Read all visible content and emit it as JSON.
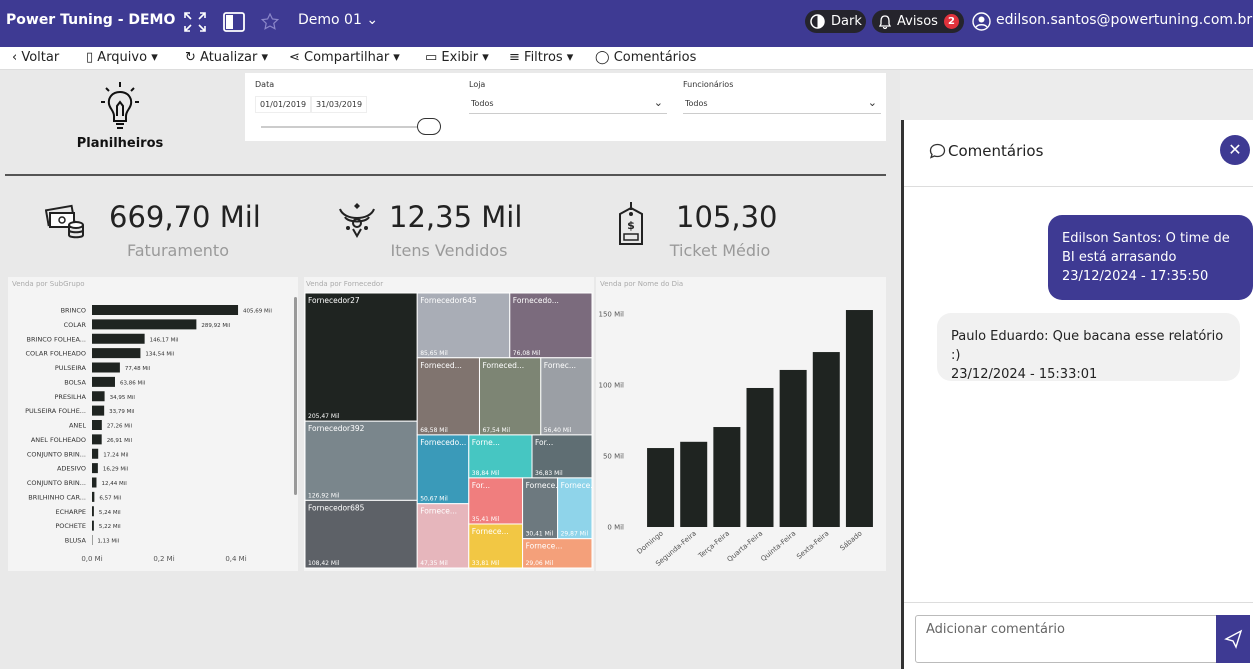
{
  "header": {
    "title": "Power Tuning - DEMO",
    "page": "Demo 01",
    "theme": "Dark",
    "alerts": "Avisos",
    "alert_count": 2,
    "user": "edilson.santos@powertuning.com.br"
  },
  "toolbar": {
    "items": [
      "Voltar",
      "Arquivo",
      "Atualizar",
      "Compartilhar",
      "Exibir",
      "Filtros",
      "Comentários"
    ]
  },
  "logo": {
    "name": "Planilheiros"
  },
  "filters": {
    "date": {
      "label": "Data",
      "start": "01/01/2019",
      "end": "31/03/2019"
    },
    "store": {
      "label": "Loja",
      "value": "Todos"
    },
    "employees": {
      "label": "Funcionários",
      "value": "Todos"
    }
  },
  "kpis": [
    {
      "value": "669,70 Mil",
      "label": "Faturamento"
    },
    {
      "value": "12,35 Mil",
      "label": "Itens Vendidos"
    },
    {
      "value": "105,30",
      "label": "Ticket Médio"
    }
  ],
  "comments_panel": {
    "title": "Comentários",
    "comments": [
      {
        "text": "Edilson Santos: O time de BI está arrasando",
        "date": "23/12/2024 - 17:35:50"
      },
      {
        "text": "Paulo Eduardo: Que bacana esse relatório :)",
        "date": "23/12/2024 - 15:33:01"
      }
    ],
    "input_placeholder": "Adicionar comentário"
  },
  "chart_data": [
    {
      "type": "hbar",
      "title": "Venda por SubGrupo",
      "categories": [
        "BRINCO",
        "COLAR",
        "BRINCO FOLHEA...",
        "COLAR FOLHEADO",
        "PULSEIRA",
        "BOLSA",
        "PRESILHA",
        "PULSEIRA FOLHE...",
        "ANEL",
        "ANEL FOLHEADO",
        "CONJUNTO BRIN...",
        "ADESIVO",
        "CONJUNTO BRIN...",
        "BRILHINHO CAR...",
        "ECHARPE",
        "POCHETE",
        "BLUSA"
      ],
      "values": [
        0.40569,
        0.28992,
        0.14617,
        0.13454,
        0.07748,
        0.06386,
        0.03495,
        0.03379,
        0.02726,
        0.02691,
        0.01724,
        0.01629,
        0.01244,
        0.00657,
        0.00524,
        0.00522,
        0.00113
      ],
      "value_labels": [
        "405,69 Mil",
        "289,92 Mil",
        "146,17 Mil",
        "134,54 Mil",
        "77,48 Mil",
        "63,86 Mil",
        "34,95 Mil",
        "33,79 Mil",
        "27,26 Mil",
        "26,91 Mil",
        "17,24 Mil",
        "16,29 Mil",
        "12,44 Mil",
        "6,57 Mil",
        "5,24 Mil",
        "5,22 Mil",
        "1,13 Mil"
      ],
      "color": "#1f2421",
      "xlim": [
        0,
        0.41
      ],
      "xticks": [
        {
          "value": 0,
          "label": "0,0 Mi"
        },
        {
          "value": 0.2,
          "label": "0,2 Mi"
        },
        {
          "value": 0.4,
          "label": "0,4 Mi"
        }
      ]
    },
    {
      "type": "treemap",
      "title": "Venda por Fornecedor",
      "categories": [
        "Fornecedor27",
        "Fornecedor392",
        "Fornecedor685",
        "Fornecedor645",
        "Fornecedo...",
        "Forneced...",
        "Forneced...",
        "Fornec...",
        "Fornecedo...",
        "Fornece...",
        "Forne...",
        "For...",
        "For...",
        "Fornece...",
        "Fornece...",
        "Fornece...",
        "Fornece..."
      ],
      "values": [
        205.47,
        126.92,
        108.42,
        85.65,
        76.08,
        68.58,
        67.54,
        56.4,
        50.67,
        47.35,
        38.84,
        36.83,
        35.41,
        33.81,
        30.41,
        29.87,
        29.06
      ],
      "value_labels": [
        "205,47 Mil",
        "126,92 Mil",
        "108,42 Mil",
        "85,65 Mil",
        "76,08 Mil",
        "68,58 Mil",
        "67,54 Mil",
        "56,40 Mil",
        "50,67 Mil",
        "47,35 Mil",
        "38,84 Mil",
        "36,83 Mil",
        "35,41 Mil",
        "33,81 Mil",
        "30,41 Mil",
        "29,87 Mil",
        "29,06 Mil"
      ],
      "colors": [
        "#1f2421",
        "#7a868c",
        "#5d6167",
        "#a9adb6",
        "#7b6b7d",
        "#80746f",
        "#7d8574",
        "#9b9fa5",
        "#3a9ab9",
        "#e6b6bc",
        "#46c6c2",
        "#5f6e73",
        "#f07e7e",
        "#f2c744",
        "#6d797f",
        "#8fd4ea",
        "#f4a07a"
      ]
    },
    {
      "type": "bar",
      "title": "Venda por Nome do Dia",
      "categories": [
        "Domingo",
        "Segunda-Feira",
        "Terça-Feira",
        "Quarta-Feira",
        "Quinta-Feira",
        "Sexta-Feira",
        "Sábado"
      ],
      "values": [
        55.6,
        60,
        70.4,
        97.9,
        110.6,
        123.2,
        152.8
      ],
      "color": "#1f2421",
      "ylim": [
        0,
        155
      ],
      "yticks": [
        {
          "value": 0,
          "label": "0 Mil"
        },
        {
          "value": 50,
          "label": "50 Mil"
        },
        {
          "value": 100,
          "label": "100 Mil"
        },
        {
          "value": 150,
          "label": "150 Mil"
        }
      ]
    }
  ]
}
